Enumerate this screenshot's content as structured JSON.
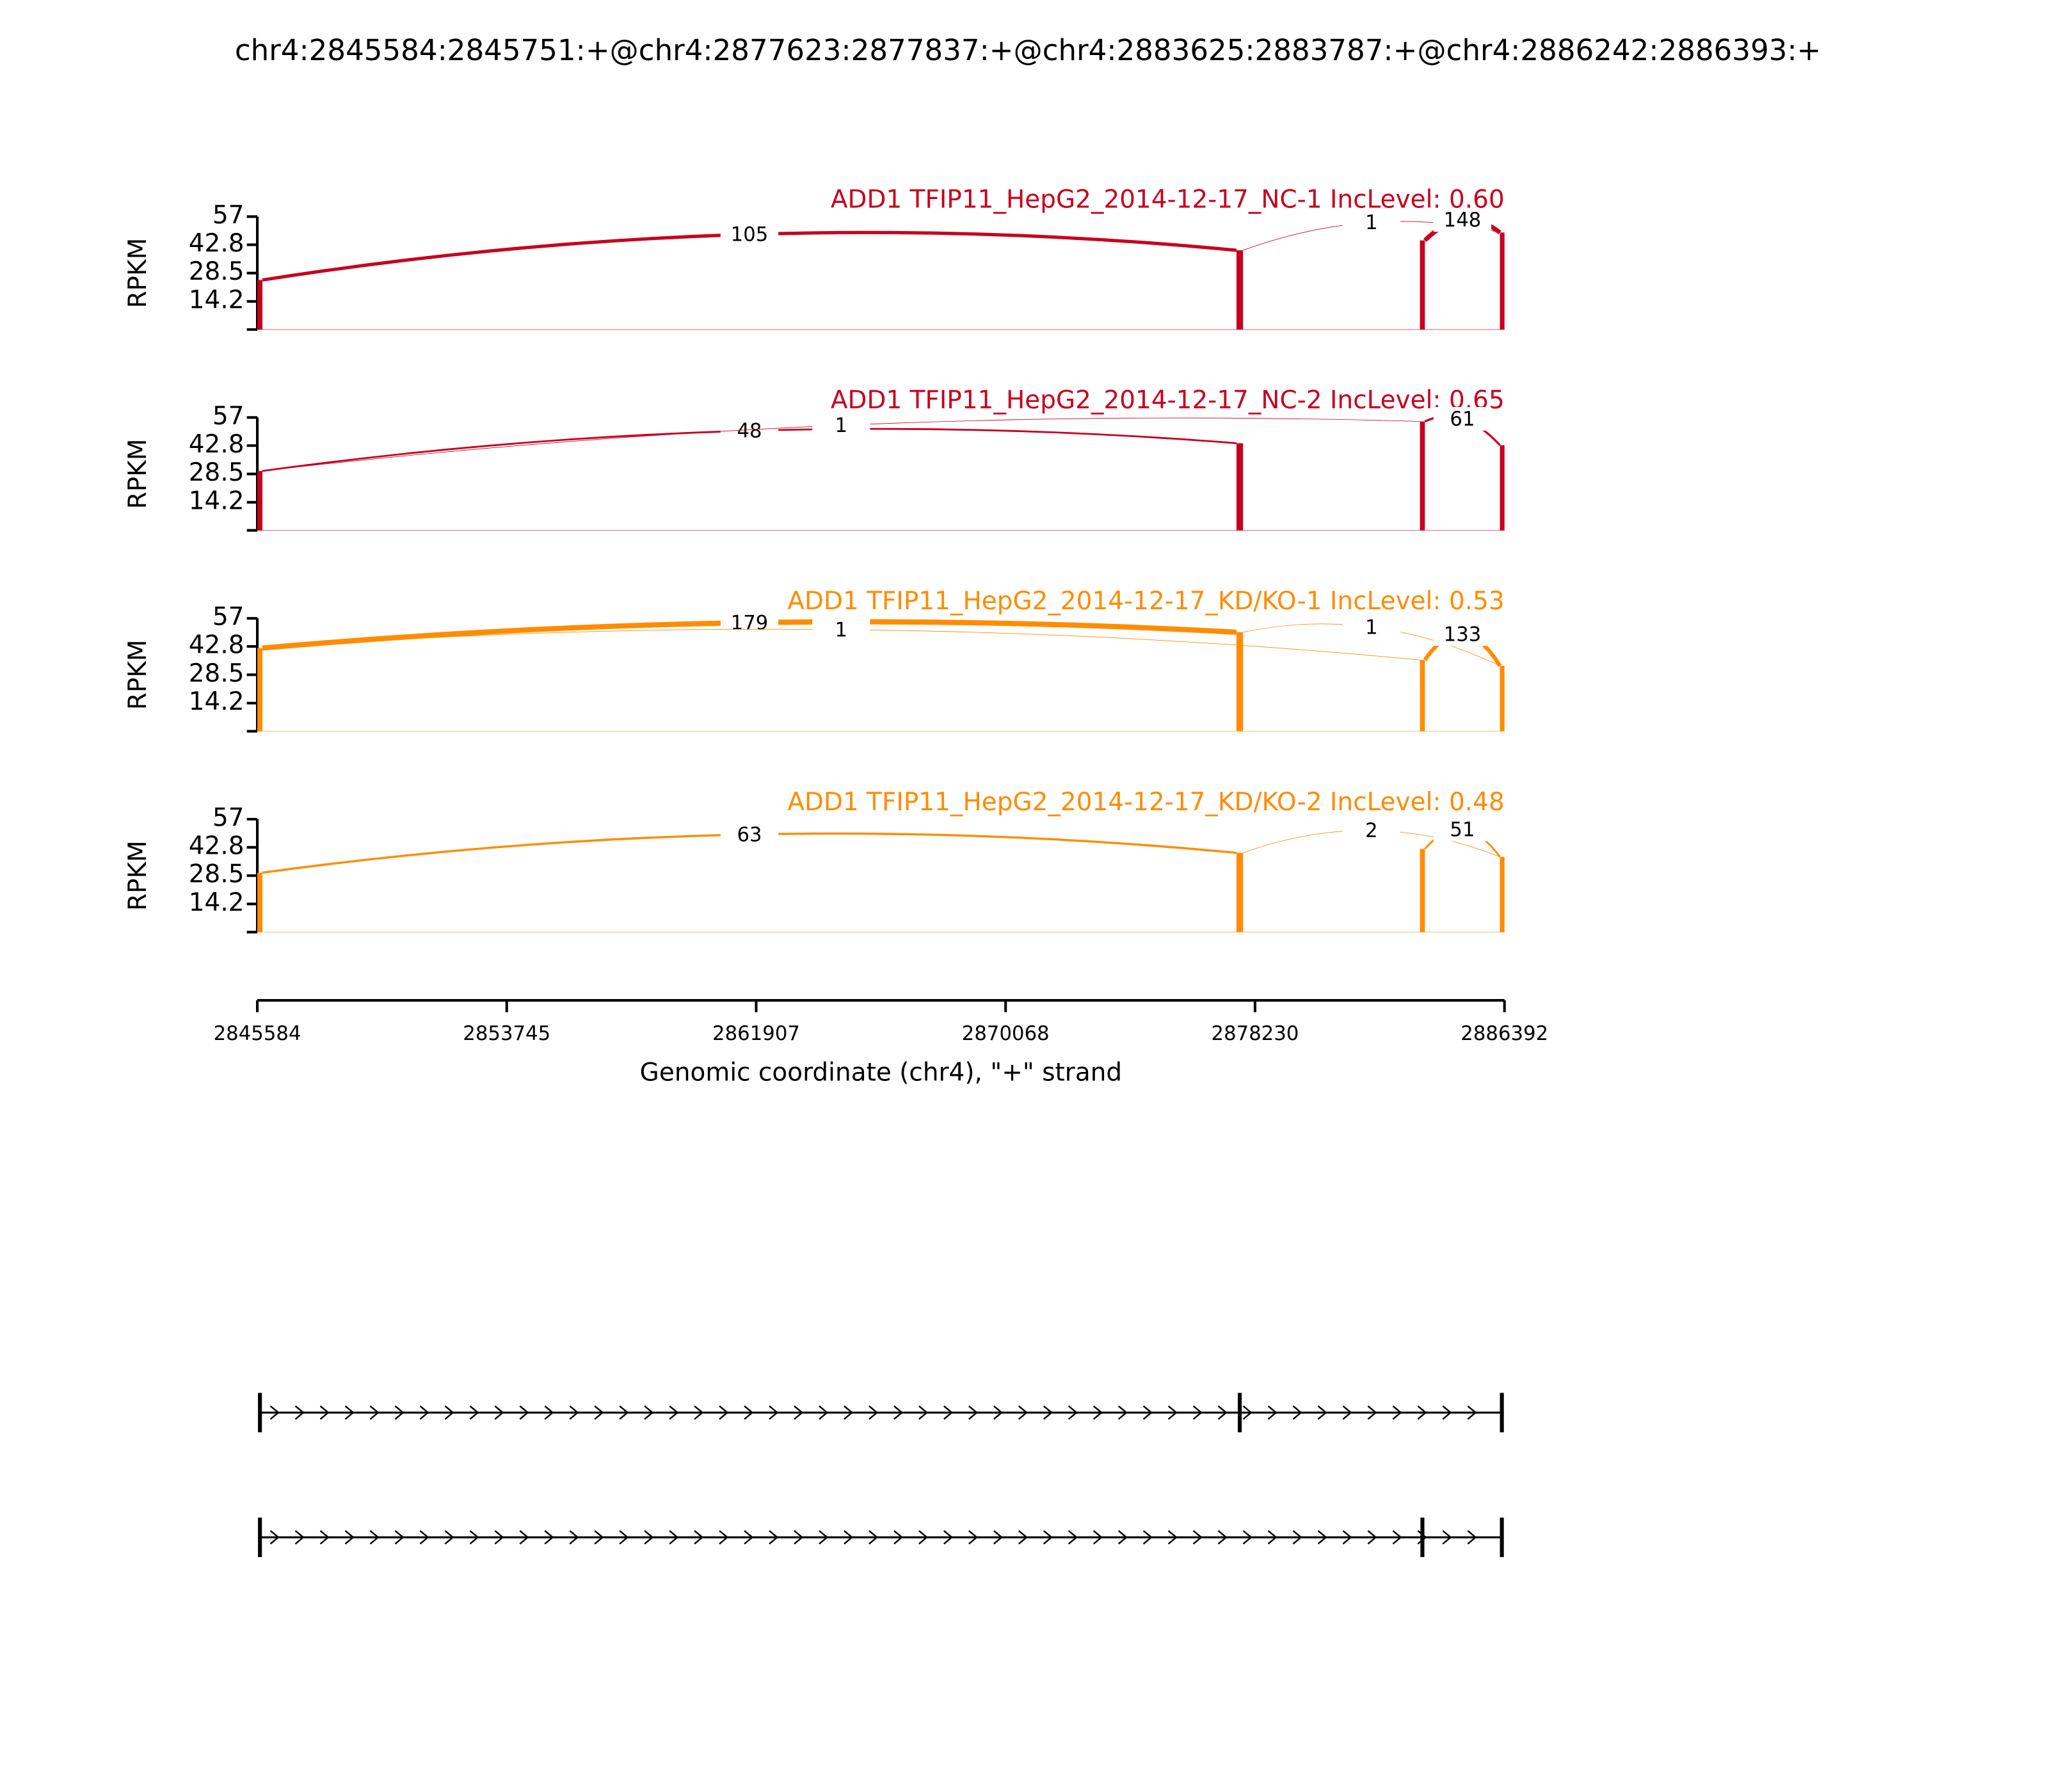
{
  "title": "chr4:2845584:2845751:+@chr4:2877623:2877837:+@chr4:2883625:2883787:+@chr4:2886242:2886393:+",
  "exons": [
    [
      2845584,
      2845751
    ],
    [
      2877623,
      2877837
    ],
    [
      2883625,
      2883787
    ],
    [
      2886242,
      2886393
    ]
  ],
  "chart_data": [
    {
      "type": "sashimi",
      "title": "ADD1 TFIP11_HepG2_2014-12-17_NC-1 IncLevel: 0.60",
      "color": "#c8001e",
      "ylabel": "RPKM",
      "ylim": [
        0,
        57
      ],
      "yticks": [
        14.2,
        28.5,
        42.8,
        57
      ],
      "coverage": [
        25,
        40,
        45,
        49
      ],
      "junctions": [
        {
          "start": 2845751,
          "end": 2877623,
          "count": 105
        },
        {
          "start": 2877837,
          "end": 2886242,
          "count": 1
        },
        {
          "start": 2883787,
          "end": 2886242,
          "count": 148
        }
      ]
    },
    {
      "type": "sashimi",
      "title": "ADD1 TFIP11_HepG2_2014-12-17_NC-2 IncLevel: 0.65",
      "color": "#c8001e",
      "ylabel": "RPKM",
      "ylim": [
        0,
        57
      ],
      "yticks": [
        14.2,
        28.5,
        42.8,
        57
      ],
      "coverage": [
        30,
        44,
        55,
        43
      ],
      "junctions": [
        {
          "start": 2845751,
          "end": 2877623,
          "count": 48
        },
        {
          "start": 2845751,
          "end": 2883625,
          "count": 1
        },
        {
          "start": 2883787,
          "end": 2886242,
          "count": 61
        }
      ]
    },
    {
      "type": "sashimi",
      "title": "ADD1 TFIP11_HepG2_2014-12-17_KD/KO-1 IncLevel: 0.53",
      "color": "#ff8c00",
      "ylabel": "RPKM",
      "ylim": [
        0,
        57
      ],
      "yticks": [
        14.2,
        28.5,
        42.8,
        57
      ],
      "coverage": [
        42,
        50,
        36,
        33
      ],
      "junctions": [
        {
          "start": 2845751,
          "end": 2877623,
          "count": 179
        },
        {
          "start": 2845751,
          "end": 2883625,
          "count": 1
        },
        {
          "start": 2877837,
          "end": 2886242,
          "count": 1
        },
        {
          "start": 2883787,
          "end": 2886242,
          "count": 133
        }
      ]
    },
    {
      "type": "sashimi",
      "title": "ADD1 TFIP11_HepG2_2014-12-17_KD/KO-2 IncLevel: 0.48",
      "color": "#ff8c00",
      "ylabel": "RPKM",
      "ylim": [
        0,
        57
      ],
      "yticks": [
        14.2,
        28.5,
        42.8,
        57
      ],
      "coverage": [
        30,
        40,
        42,
        38
      ],
      "junctions": [
        {
          "start": 2845751,
          "end": 2877623,
          "count": 63
        },
        {
          "start": 2877837,
          "end": 2886242,
          "count": 2
        },
        {
          "start": 2883787,
          "end": 2886242,
          "count": 51
        }
      ]
    }
  ],
  "x_axis": {
    "xlabel": "Genomic coordinate (chr4), \"+\" strand",
    "xlim": [
      2845584,
      2886392
    ],
    "xticks": [
      2845584,
      2853745,
      2861907,
      2870068,
      2878230,
      2886392
    ]
  },
  "transcripts": [
    {
      "exons": [
        [
          2845584,
          2845751
        ],
        [
          2877623,
          2877837
        ],
        [
          2886242,
          2886393
        ]
      ]
    },
    {
      "exons": [
        [
          2845584,
          2845751
        ],
        [
          2883625,
          2883787
        ],
        [
          2886242,
          2886393
        ]
      ]
    }
  ]
}
